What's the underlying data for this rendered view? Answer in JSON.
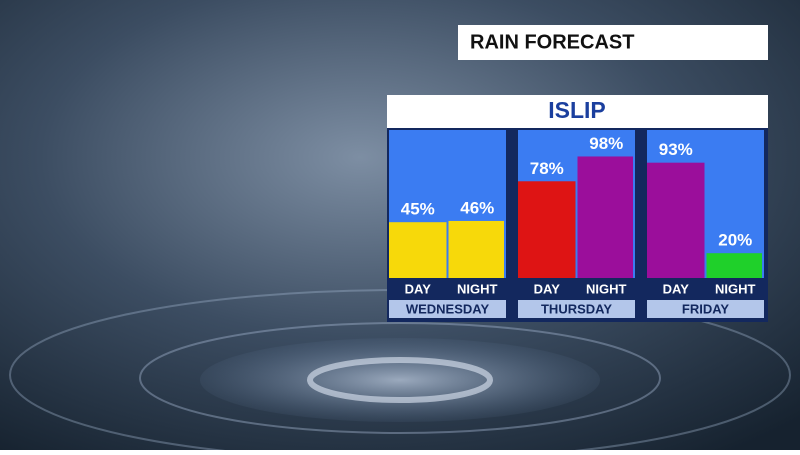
{
  "chart_data": {
    "type": "bar",
    "title": "RAIN FORECAST",
    "subtitle": "ISLIP",
    "ylim": [
      0,
      100
    ],
    "groups": [
      {
        "name": "WEDNESDAY",
        "categories": [
          "DAY",
          "NIGHT"
        ],
        "values": [
          45,
          46
        ],
        "value_labels": [
          "45%",
          "46%"
        ],
        "colors": [
          "#f7d90a",
          "#f7d90a"
        ]
      },
      {
        "name": "THURSDAY",
        "categories": [
          "DAY",
          "NIGHT"
        ],
        "values": [
          78,
          98
        ],
        "value_labels": [
          "78%",
          "98%"
        ],
        "colors": [
          "#de1414",
          "#9b0e9b"
        ]
      },
      {
        "name": "FRIDAY",
        "categories": [
          "DAY",
          "NIGHT"
        ],
        "values": [
          93,
          20
        ],
        "value_labels": [
          "93%",
          "20%"
        ],
        "colors": [
          "#9b0e9b",
          "#1fd02a"
        ]
      }
    ]
  }
}
